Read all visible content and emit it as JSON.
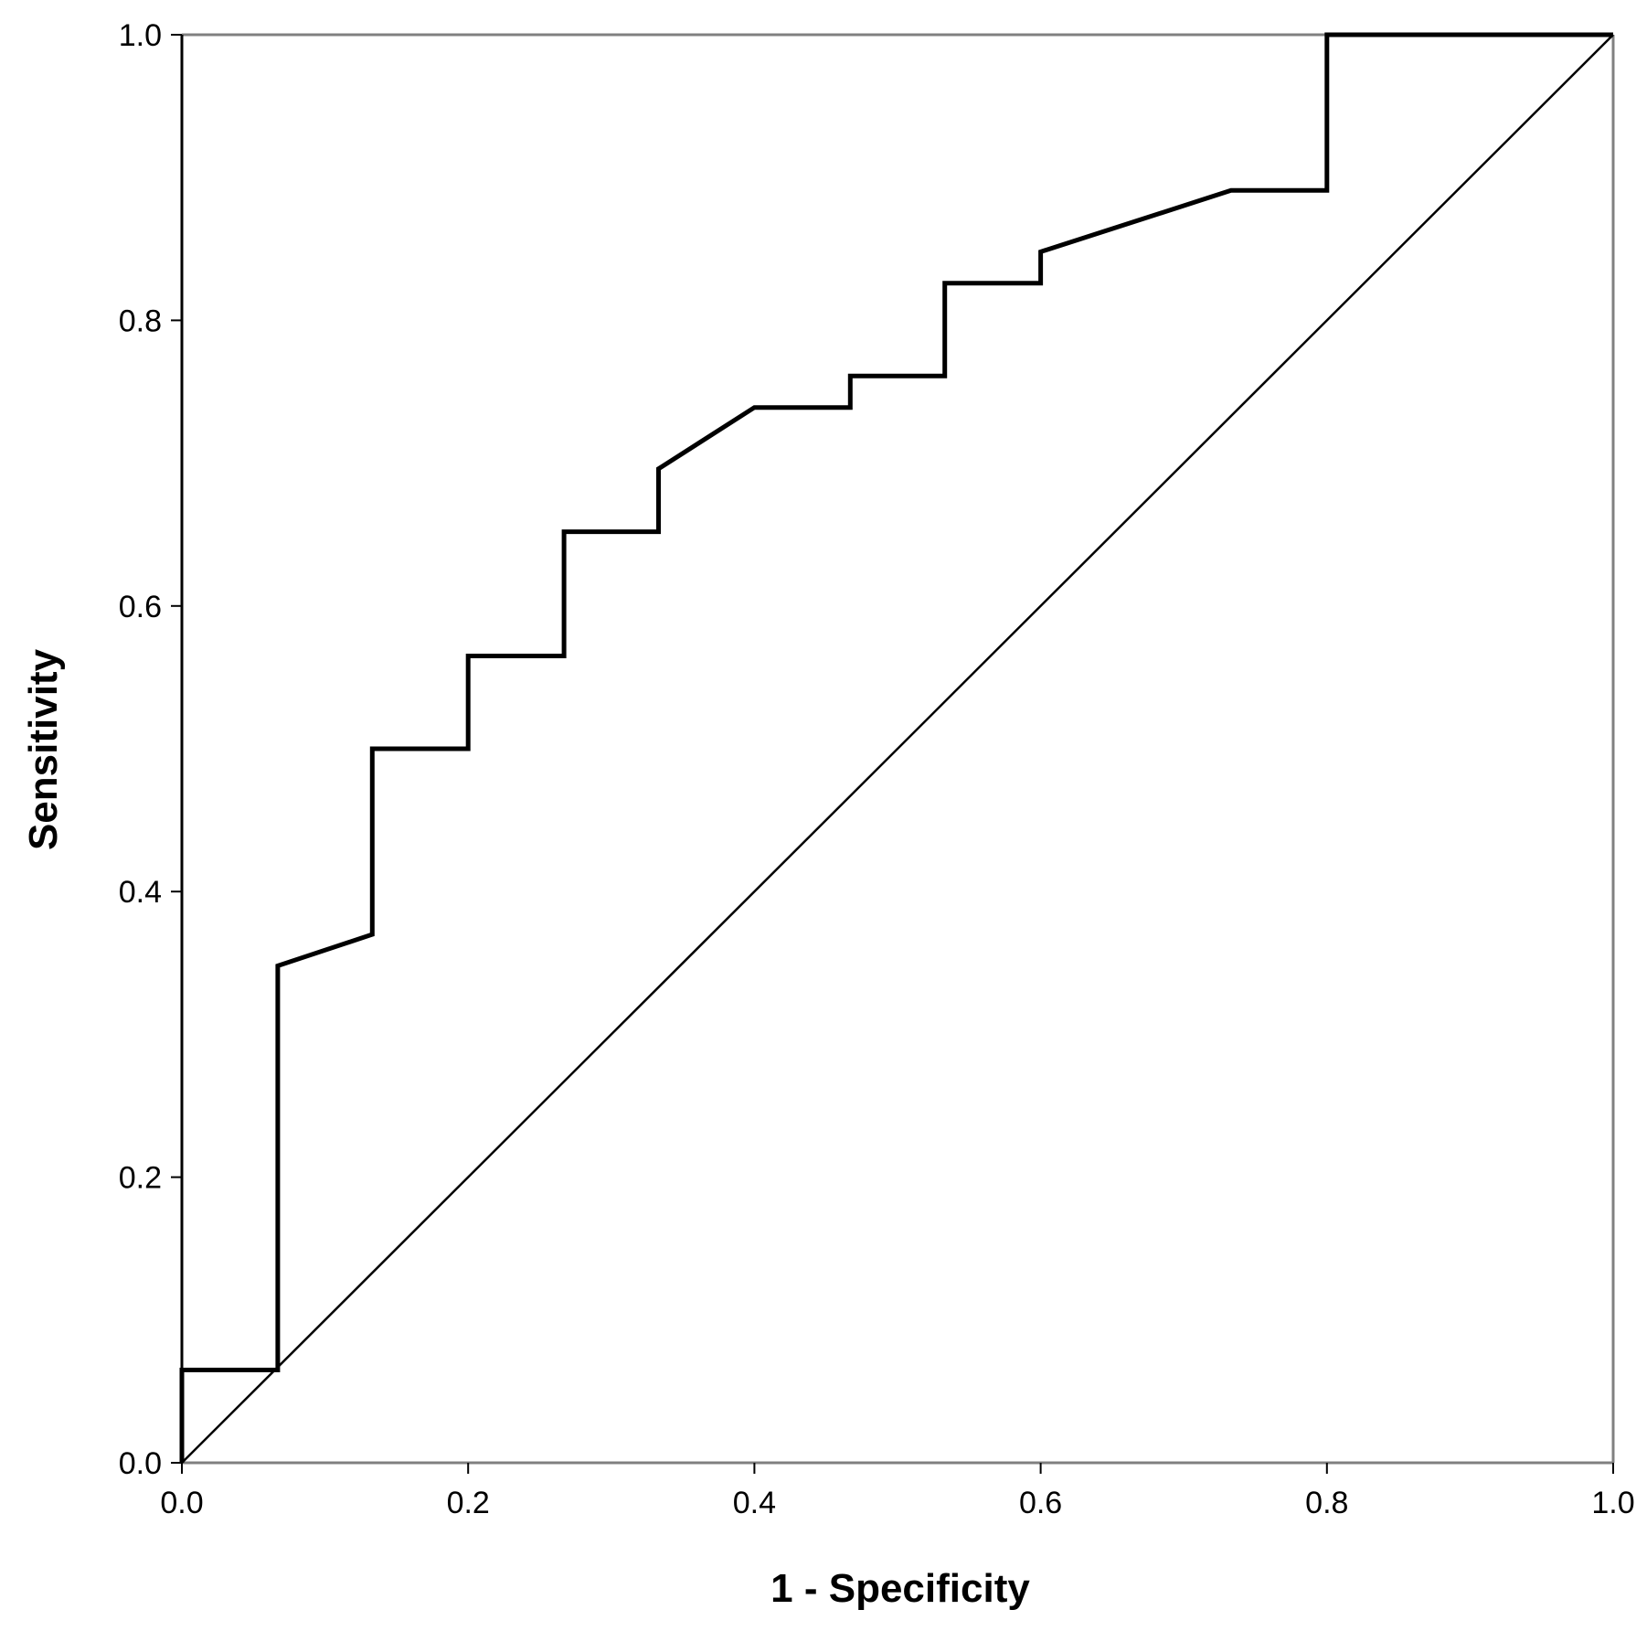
{
  "chart_data": {
    "type": "line",
    "title": "",
    "xlabel": "1 - Specificity",
    "ylabel": "Sensitivity",
    "xlim": [
      0,
      1
    ],
    "ylim": [
      0,
      1
    ],
    "grid": false,
    "legend": "none",
    "x_ticks": [
      "0.0",
      "0.2",
      "0.4",
      "0.6",
      "0.8",
      "1.0"
    ],
    "y_ticks": [
      "0.0",
      "0.2",
      "0.4",
      "0.6",
      "0.8",
      "1.0"
    ],
    "series": [
      {
        "role": "roc-curve",
        "color": "#000000",
        "points": [
          [
            0.0,
            0.0
          ],
          [
            0.0,
            0.065
          ],
          [
            0.067,
            0.065
          ],
          [
            0.067,
            0.348
          ],
          [
            0.133,
            0.37
          ],
          [
            0.133,
            0.5
          ],
          [
            0.2,
            0.5
          ],
          [
            0.2,
            0.565
          ],
          [
            0.267,
            0.565
          ],
          [
            0.267,
            0.652
          ],
          [
            0.333,
            0.652
          ],
          [
            0.333,
            0.696
          ],
          [
            0.4,
            0.739
          ],
          [
            0.467,
            0.739
          ],
          [
            0.467,
            0.761
          ],
          [
            0.533,
            0.761
          ],
          [
            0.533,
            0.826
          ],
          [
            0.6,
            0.826
          ],
          [
            0.6,
            0.848
          ],
          [
            0.733,
            0.891
          ],
          [
            0.8,
            0.891
          ],
          [
            0.8,
            1.0
          ],
          [
            1.0,
            1.0
          ]
        ]
      },
      {
        "role": "reference-line",
        "color": "#000000",
        "points": [
          [
            0.0,
            0.0
          ],
          [
            1.0,
            1.0
          ]
        ]
      }
    ]
  }
}
